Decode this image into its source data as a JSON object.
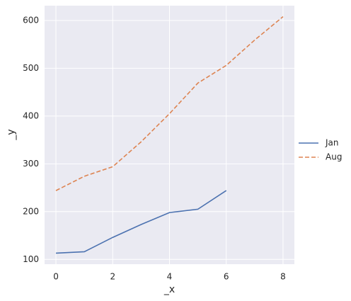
{
  "chart_data": {
    "type": "line",
    "x_label": "_x",
    "y_label": "_y",
    "x": [
      0,
      1,
      2,
      3,
      4,
      5,
      6,
      7,
      8
    ],
    "series": [
      {
        "name": "Jan",
        "color": "#4c72b0",
        "linestyle": "solid",
        "values": [
          113,
          116,
          146,
          173,
          198,
          205,
          244,
          null,
          null
        ]
      },
      {
        "name": "Aug",
        "color": "#dd8452",
        "linestyle": "dashed",
        "values": [
          244,
          274,
          294,
          346,
          405,
          469,
          506,
          559,
          608
        ]
      }
    ],
    "xlim": [
      -0.4,
      8.4
    ],
    "xticks": [
      0,
      2,
      4,
      6,
      8
    ],
    "ylim": [
      90,
      631
    ],
    "yticks": [
      100,
      200,
      300,
      400,
      500,
      600
    ],
    "grid": true,
    "legend": "right"
  }
}
